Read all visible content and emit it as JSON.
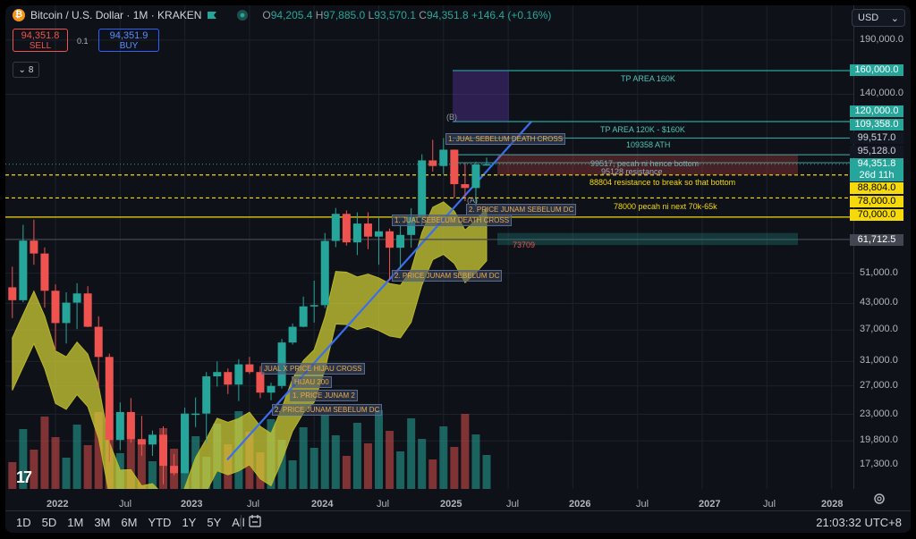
{
  "header": {
    "symbol_title": "Bitcoin / U.S. Dollar · 1M · KRAKEN",
    "ohlc": [
      {
        "k": "O",
        "v": "94,205.4"
      },
      {
        "k": "H",
        "v": "97,885.0"
      },
      {
        "k": "L",
        "v": "93,570.1"
      },
      {
        "k": "C",
        "v": "94,351.8"
      }
    ],
    "change": "+146.4 (+0.16%)",
    "icons": [
      "bitcoin-logo",
      "flag-icon",
      "eye-icon"
    ]
  },
  "trade": {
    "sell_price": "94,351.8",
    "sell_label": "SELL",
    "buy_price": "94,351.9",
    "buy_label": "BUY",
    "spread": "0.1"
  },
  "indicators_count": "8",
  "currency": "USD",
  "price_scale": [
    "190,000.0",
    "140,000.0",
    "51,000.0",
    "43,000.0",
    "37,000.0",
    "31,000.0",
    "27,000.0",
    "23,000.0",
    "19,800.0",
    "17,300.0"
  ],
  "price_badges": [
    {
      "text": "160,000.0",
      "bg": "#26a69a",
      "fg": "#ffffff"
    },
    {
      "text": "120,000.0",
      "bg": "#26a69a",
      "fg": "#ffffff"
    },
    {
      "text": "109,358.0",
      "bg": "#26a69a",
      "fg": "#ffffff"
    },
    {
      "text": "99,517.0",
      "bg": "#131722",
      "fg": "#d1d4dc"
    },
    {
      "text": "95,128.0",
      "bg": "#131722",
      "fg": "#d1d4dc"
    },
    {
      "text": "94,351.8",
      "bg": "#26a69a",
      "fg": "#ffffff"
    },
    {
      "text": "26d 11h",
      "bg": "#26a69a",
      "fg": "#ffffff"
    },
    {
      "text": "88,804.0",
      "bg": "#f5d90a",
      "fg": "#000000"
    },
    {
      "text": "78,000.0",
      "bg": "#f5d90a",
      "fg": "#000000"
    },
    {
      "text": "70,000.0",
      "bg": "#f5d90a",
      "fg": "#000000"
    },
    {
      "text": "61,712.5",
      "bg": "#434651",
      "fg": "#ffffff"
    }
  ],
  "time_axis": [
    "2022",
    "Jul",
    "2023",
    "Jul",
    "2024",
    "Jul",
    "2025",
    "Jul",
    "2026",
    "Jul",
    "2027",
    "Jul",
    "2028"
  ],
  "annotations": {
    "tp160": "TP AREA 160K",
    "tp120": "TP AREA 120K - $160K",
    "ath": "109358 ATH",
    "pecah_hence": "99517, pecah ni hence bottom",
    "res_95128": "95128 resistance",
    "res_88804": "88804 resistance to break so that bottom",
    "pecah_78000": "78000 pecah ni next 70k-65k",
    "low_73709": "73709",
    "wave_B": "(B)",
    "wave_A": "(A)"
  },
  "box_labels": [
    "1. JUAL SEBELUM DEATH CROSS",
    "2. PRICE JUNAM SEBELUM DC",
    "1. JUAL SEBELUM DEATH CROSS",
    "2. PRICE JUNAM SEBELUM DC",
    "JUAL X PRICE HIJAU CROSS",
    "1. PRICE JUNAM 2",
    "2. PRICE JUNAM SEBELUM DC",
    "HIJAU 200"
  ],
  "toolbar": {
    "timeframes": [
      "1D",
      "5D",
      "1M",
      "3M",
      "6M",
      "YTD",
      "1Y",
      "5Y",
      "All"
    ],
    "clock": "21:03:32 UTC+8"
  },
  "chart_data": {
    "type": "candlestick",
    "interval": "1M",
    "symbol": "BTC/USD",
    "exchange": "KRAKEN",
    "y_scale": "log",
    "ylim": [
      15500,
      230000
    ],
    "candles": [
      {
        "t": "2021-09",
        "o": 47100,
        "h": 52900,
        "l": 39600,
        "c": 43800
      },
      {
        "t": "2021-10",
        "o": 43800,
        "h": 67000,
        "l": 43300,
        "c": 61300
      },
      {
        "t": "2021-11",
        "o": 61300,
        "h": 69000,
        "l": 53500,
        "c": 57000
      },
      {
        "t": "2021-12",
        "o": 57000,
        "h": 59000,
        "l": 42000,
        "c": 46200
      },
      {
        "t": "2022-01",
        "o": 46200,
        "h": 47900,
        "l": 32900,
        "c": 38500
      },
      {
        "t": "2022-02",
        "o": 38500,
        "h": 45800,
        "l": 34300,
        "c": 43200
      },
      {
        "t": "2022-03",
        "o": 43200,
        "h": 48200,
        "l": 37200,
        "c": 45500
      },
      {
        "t": "2022-04",
        "o": 45500,
        "h": 47400,
        "l": 37600,
        "c": 37700
      },
      {
        "t": "2022-05",
        "o": 37700,
        "h": 40000,
        "l": 26700,
        "c": 31800
      },
      {
        "t": "2022-06",
        "o": 31800,
        "h": 32400,
        "l": 17600,
        "c": 19900
      },
      {
        "t": "2022-07",
        "o": 19900,
        "h": 24600,
        "l": 18800,
        "c": 23300
      },
      {
        "t": "2022-08",
        "o": 23300,
        "h": 25200,
        "l": 19600,
        "c": 20000
      },
      {
        "t": "2022-09",
        "o": 20000,
        "h": 22800,
        "l": 18200,
        "c": 19400
      },
      {
        "t": "2022-10",
        "o": 19400,
        "h": 21000,
        "l": 18200,
        "c": 20500
      },
      {
        "t": "2022-11",
        "o": 20500,
        "h": 21500,
        "l": 15500,
        "c": 17200
      },
      {
        "t": "2022-12",
        "o": 17200,
        "h": 18400,
        "l": 16300,
        "c": 16500
      },
      {
        "t": "2023-01",
        "o": 16500,
        "h": 23900,
        "l": 16500,
        "c": 23100
      },
      {
        "t": "2023-02",
        "o": 23100,
        "h": 25300,
        "l": 21400,
        "c": 23100
      },
      {
        "t": "2023-03",
        "o": 23100,
        "h": 29200,
        "l": 19600,
        "c": 28500
      },
      {
        "t": "2023-04",
        "o": 28500,
        "h": 31000,
        "l": 26900,
        "c": 29200
      },
      {
        "t": "2023-05",
        "o": 29200,
        "h": 29800,
        "l": 25800,
        "c": 27200
      },
      {
        "t": "2023-06",
        "o": 27200,
        "h": 31400,
        "l": 24800,
        "c": 30500
      },
      {
        "t": "2023-07",
        "o": 30500,
        "h": 31800,
        "l": 28900,
        "c": 29200
      },
      {
        "t": "2023-08",
        "o": 29200,
        "h": 30200,
        "l": 25200,
        "c": 26000
      },
      {
        "t": "2023-09",
        "o": 26000,
        "h": 27500,
        "l": 24900,
        "c": 27000
      },
      {
        "t": "2023-10",
        "o": 27000,
        "h": 35200,
        "l": 26600,
        "c": 34500
      },
      {
        "t": "2023-11",
        "o": 34500,
        "h": 38400,
        "l": 34100,
        "c": 37700
      },
      {
        "t": "2023-12",
        "o": 37700,
        "h": 44700,
        "l": 37600,
        "c": 42300
      },
      {
        "t": "2024-01",
        "o": 42300,
        "h": 48900,
        "l": 38600,
        "c": 42600
      },
      {
        "t": "2024-02",
        "o": 42600,
        "h": 64000,
        "l": 41900,
        "c": 61200
      },
      {
        "t": "2024-03",
        "o": 61200,
        "h": 73700,
        "l": 59100,
        "c": 71300
      },
      {
        "t": "2024-04",
        "o": 71300,
        "h": 72700,
        "l": 59600,
        "c": 60700
      },
      {
        "t": "2024-05",
        "o": 60700,
        "h": 71900,
        "l": 56500,
        "c": 67500
      },
      {
        "t": "2024-06",
        "o": 67500,
        "h": 71900,
        "l": 58400,
        "c": 62700
      },
      {
        "t": "2024-07",
        "o": 62700,
        "h": 70000,
        "l": 53500,
        "c": 64600
      },
      {
        "t": "2024-08",
        "o": 64600,
        "h": 65600,
        "l": 49000,
        "c": 58900
      },
      {
        "t": "2024-09",
        "o": 58900,
        "h": 66500,
        "l": 52600,
        "c": 63300
      },
      {
        "t": "2024-10",
        "o": 63300,
        "h": 73600,
        "l": 58900,
        "c": 70200
      },
      {
        "t": "2024-11",
        "o": 70200,
        "h": 99800,
        "l": 66800,
        "c": 96400
      },
      {
        "t": "2024-12",
        "o": 96400,
        "h": 108300,
        "l": 90500,
        "c": 93400
      },
      {
        "t": "2025-01",
        "o": 93400,
        "h": 109358,
        "l": 89200,
        "c": 102400
      },
      {
        "t": "2025-02",
        "o": 102400,
        "h": 102500,
        "l": 78200,
        "c": 84300
      },
      {
        "t": "2025-03",
        "o": 84300,
        "h": 95000,
        "l": 76600,
        "c": 82500
      },
      {
        "t": "2025-04",
        "o": 82500,
        "h": 95700,
        "l": 74400,
        "c": 94205.4
      },
      {
        "t": "2025-05",
        "o": 94205.4,
        "h": 97885.0,
        "l": 93570.1,
        "c": 94351.8
      }
    ],
    "horizontal_levels": [
      160000,
      120000,
      109358,
      99517,
      95128,
      88804,
      78000,
      70000,
      61712.5
    ],
    "x_axis_labels": [
      "2022",
      "Jul",
      "2023",
      "Jul",
      "2024",
      "Jul",
      "2025",
      "Jul",
      "2026",
      "Jul",
      "2027",
      "Jul",
      "2028"
    ]
  }
}
